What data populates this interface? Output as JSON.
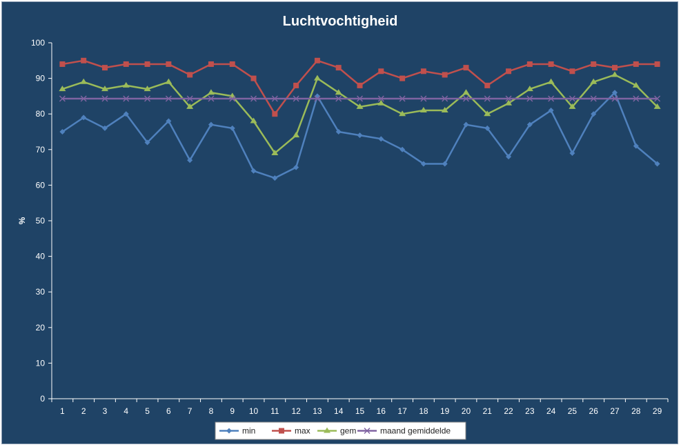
{
  "chart_data": {
    "type": "line",
    "title": "Luchtvochtigheid",
    "xlabel": "",
    "ylabel": "%",
    "ylim": [
      0,
      100
    ],
    "yticks": [
      0,
      10,
      20,
      30,
      40,
      50,
      60,
      70,
      80,
      90,
      100
    ],
    "grid": false,
    "legend_position": "bottom",
    "categories": [
      "1",
      "2",
      "3",
      "4",
      "5",
      "6",
      "7",
      "8",
      "9",
      "10",
      "11",
      "12",
      "13",
      "14",
      "15",
      "16",
      "17",
      "18",
      "19",
      "20",
      "21",
      "22",
      "23",
      "24",
      "25",
      "26",
      "27",
      "28",
      "29"
    ],
    "series": [
      {
        "name": "min",
        "color": "#4f81bd",
        "marker": "diamond",
        "values": [
          75,
          79,
          76,
          80,
          72,
          78,
          67,
          77,
          76,
          64,
          62,
          65,
          85,
          75,
          74,
          73,
          70,
          66,
          66,
          77,
          76,
          68,
          77,
          81,
          69,
          80,
          86,
          71,
          66
        ]
      },
      {
        "name": "max",
        "color": "#c0504d",
        "marker": "square",
        "values": [
          94,
          95,
          93,
          94,
          94,
          94,
          91,
          94,
          94,
          90,
          80,
          88,
          95,
          93,
          88,
          92,
          90,
          92,
          91,
          93,
          88,
          92,
          94,
          94,
          92,
          94,
          93,
          94,
          94
        ]
      },
      {
        "name": "gem",
        "color": "#9bbb59",
        "marker": "triangle",
        "values": [
          87,
          89,
          87,
          88,
          87,
          89,
          82,
          86,
          85,
          78,
          69,
          74,
          90,
          86,
          82,
          83,
          80,
          81,
          81,
          86,
          80,
          83,
          87,
          89,
          82,
          89,
          91,
          88,
          82
        ]
      },
      {
        "name": "maand gemiddelde",
        "color": "#8064a2",
        "marker": "x",
        "values": [
          84.3,
          84.3,
          84.3,
          84.3,
          84.3,
          84.3,
          84.3,
          84.3,
          84.3,
          84.3,
          84.3,
          84.3,
          84.3,
          84.3,
          84.3,
          84.3,
          84.3,
          84.3,
          84.3,
          84.3,
          84.3,
          84.3,
          84.3,
          84.3,
          84.3,
          84.3,
          84.3,
          84.3,
          84.3
        ]
      }
    ]
  },
  "colors": {
    "background": "#1f4366",
    "axis": "#ffffff",
    "legend_background": "#ffffff"
  }
}
